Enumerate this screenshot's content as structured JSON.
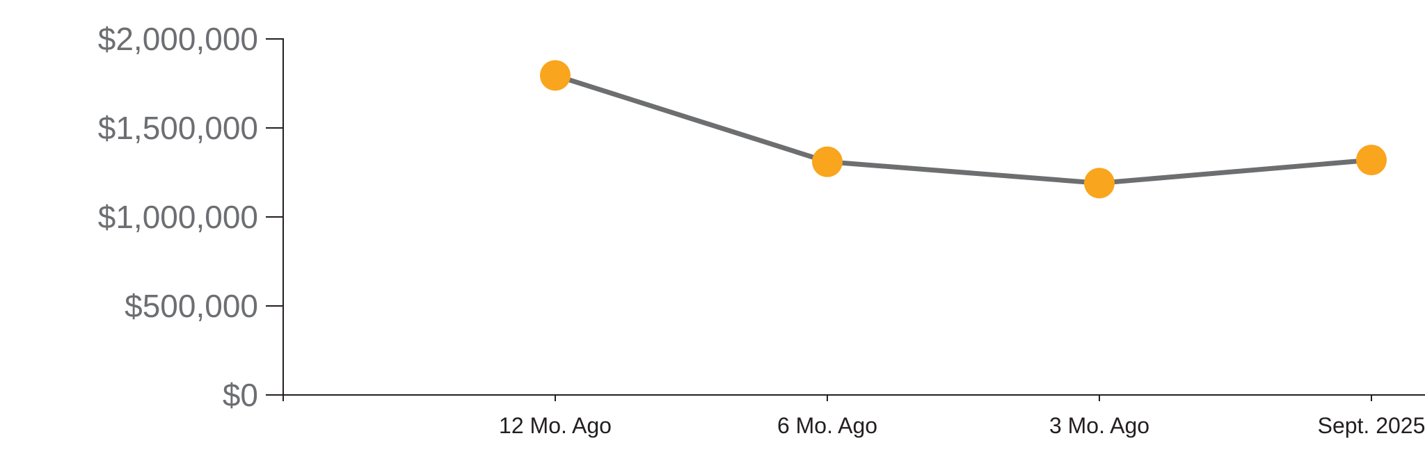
{
  "chart_data": {
    "type": "line",
    "title": "",
    "categories": [
      "12 Mo. Ago",
      "6 Mo. Ago",
      "3 Mo. Ago",
      "Sept. 2025"
    ],
    "series": [
      {
        "values": [
          1795000,
          1310000,
          1190000,
          1320000
        ]
      }
    ],
    "y_axis": {
      "range": [
        0,
        2000000
      ],
      "tick_interval": 500000,
      "ticks": [
        {
          "value": 2000000,
          "label": "$2,000,000"
        },
        {
          "value": 1500000,
          "label": "$1,500,000"
        },
        {
          "value": 1000000,
          "label": "$1,000,000"
        },
        {
          "value": 500000,
          "label": "$500,000"
        },
        {
          "value": 0,
          "label": "$0"
        }
      ]
    },
    "x_axis": {
      "ticks": [
        "12 Mo. Ago",
        "6 Mo. Ago",
        "3 Mo. Ago",
        "Sept. 2025"
      ]
    },
    "grid": false,
    "legend": false,
    "colors": {
      "marker": "#F9A51D",
      "line": "#6D6E70",
      "axis": "#231F20",
      "y_label": "#6D6E71",
      "x_label": "#231F20"
    }
  }
}
